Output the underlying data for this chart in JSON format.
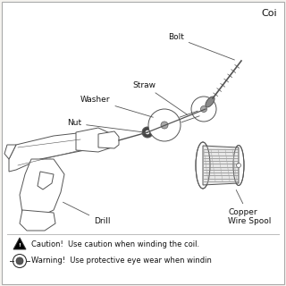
{
  "bg_color": "#f5f3ef",
  "border_color": "#aaaaaa",
  "inner_bg": "#ffffff",
  "title_partial": "Coi",
  "caution_text": "Caution!  Use caution when winding the coil.",
  "warning_text": "Warning!  Use protective eye wear when windin",
  "label_bolt": "Bolt",
  "label_straw": "Straw",
  "label_washer": "Washer",
  "label_nut": "Nut",
  "label_drill": "Drill",
  "label_copper": "Copper\nWire Spool",
  "line_color": "#555555",
  "font_size": 6.5,
  "font_color": "#111111",
  "lw": 0.7
}
